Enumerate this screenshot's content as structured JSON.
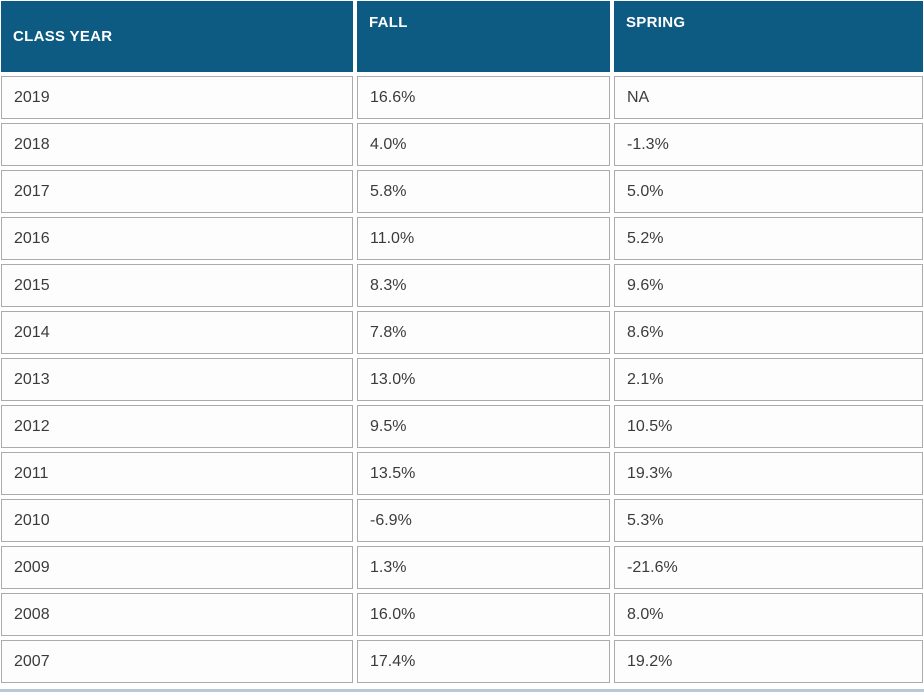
{
  "table": {
    "columns": [
      {
        "key": "year",
        "label": "CLASS YEAR"
      },
      {
        "key": "fall",
        "label": "FALL"
      },
      {
        "key": "spring",
        "label": "SPRING"
      }
    ],
    "rows": [
      {
        "year": "2019",
        "fall": "16.6%",
        "spring": "NA"
      },
      {
        "year": "2018",
        "fall": "4.0%",
        "spring": "-1.3%"
      },
      {
        "year": "2017",
        "fall": "5.8%",
        "spring": "5.0%"
      },
      {
        "year": "2016",
        "fall": "11.0%",
        "spring": "5.2%"
      },
      {
        "year": "2015",
        "fall": "8.3%",
        "spring": "9.6%"
      },
      {
        "year": "2014",
        "fall": "7.8%",
        "spring": "8.6%"
      },
      {
        "year": "2013",
        "fall": "13.0%",
        "spring": "2.1%"
      },
      {
        "year": "2012",
        "fall": "9.5%",
        "spring": "10.5%"
      },
      {
        "year": "2011",
        "fall": "13.5%",
        "spring": "19.3%"
      },
      {
        "year": "2010",
        "fall": "-6.9%",
        "spring": "5.3%"
      },
      {
        "year": "2009",
        "fall": "1.3%",
        "spring": "-21.6%"
      },
      {
        "year": "2008",
        "fall": "16.0%",
        "spring": "8.0%"
      },
      {
        "year": "2007",
        "fall": "17.4%",
        "spring": "19.2%"
      }
    ]
  },
  "chart_data": {
    "type": "table",
    "title": "",
    "columns": [
      "CLASS YEAR",
      "FALL",
      "SPRING"
    ],
    "categories": [
      "2019",
      "2018",
      "2017",
      "2016",
      "2015",
      "2014",
      "2013",
      "2012",
      "2011",
      "2010",
      "2009",
      "2008",
      "2007"
    ],
    "series": [
      {
        "name": "FALL",
        "unit": "%",
        "values": [
          16.6,
          4.0,
          5.8,
          11.0,
          8.3,
          7.8,
          13.0,
          9.5,
          13.5,
          -6.9,
          1.3,
          16.0,
          17.4
        ]
      },
      {
        "name": "SPRING",
        "unit": "%",
        "values": [
          null,
          -1.3,
          5.0,
          5.2,
          9.6,
          8.6,
          2.1,
          10.5,
          19.3,
          5.3,
          -21.6,
          8.0,
          19.2
        ]
      }
    ],
    "notes": "SPRING value for 2019 shown as NA"
  },
  "colors": {
    "header_bg": "#0d5b82",
    "header_text": "#ffffff",
    "cell_border": "#ababab",
    "cell_bg": "#fdfdfd",
    "body_text": "#3b3b3b",
    "bottom_rule": "#b5cad5",
    "page_bg": "#ffffff"
  }
}
